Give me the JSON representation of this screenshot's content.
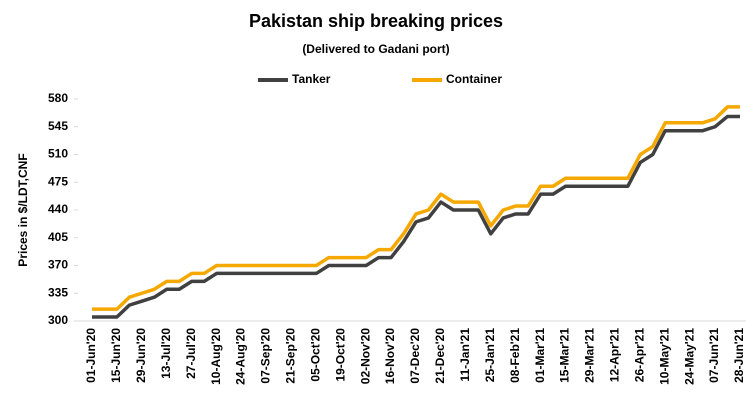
{
  "chart_data": {
    "type": "line",
    "title": "Pakistan ship breaking prices",
    "subtitle": "(Delivered to Gadani port)",
    "ylabel": "Prices in $/LDT,CNF",
    "categories": [
      "01-Jun'20",
      null,
      "15-Jun'20",
      null,
      "29-Jun'20",
      null,
      "13-Jul'20",
      null,
      "27-Jul'20",
      null,
      "10-Aug'20",
      null,
      "24-Aug'20",
      null,
      "07-Sep'20",
      null,
      "21-Sep'20",
      null,
      "05-Oct'20",
      null,
      "19-Oct'20",
      null,
      "02-Nov'20",
      null,
      "16-Nov'20",
      null,
      "07-Dec'20",
      null,
      "21-Dec'20",
      null,
      "11-Jan'21",
      null,
      "25-Jan'21",
      null,
      "08-Feb'21",
      null,
      "01-Mar'21",
      null,
      "15-Mar'21",
      null,
      "29-Mar'21",
      null,
      "12-Apr'21",
      null,
      "26-Apr'21",
      null,
      "10-May'21",
      null,
      "24-May'21",
      null,
      "07-Jun'21",
      null,
      "28-Jun'21"
    ],
    "series": [
      {
        "name": "Tanker",
        "color": "#404040",
        "values": [
          305,
          305,
          305,
          320,
          325,
          330,
          340,
          340,
          350,
          350,
          360,
          360,
          360,
          360,
          360,
          360,
          360,
          360,
          360,
          370,
          370,
          370,
          370,
          380,
          380,
          400,
          425,
          430,
          450,
          440,
          440,
          440,
          410,
          430,
          435,
          435,
          460,
          460,
          470,
          470,
          470,
          470,
          470,
          470,
          500,
          510,
          540,
          540,
          540,
          540,
          545,
          558,
          558
        ]
      },
      {
        "name": "Container",
        "color": "#f5a800",
        "values": [
          315,
          315,
          315,
          330,
          335,
          340,
          350,
          350,
          360,
          360,
          370,
          370,
          370,
          370,
          370,
          370,
          370,
          370,
          370,
          380,
          380,
          380,
          380,
          390,
          390,
          410,
          435,
          440,
          460,
          450,
          450,
          450,
          420,
          440,
          445,
          445,
          470,
          470,
          480,
          480,
          480,
          480,
          480,
          480,
          510,
          520,
          550,
          550,
          550,
          550,
          555,
          570,
          570
        ]
      }
    ],
    "ylim": [
      300,
      580
    ],
    "yticks": [
      300,
      335,
      370,
      405,
      440,
      475,
      510,
      545,
      580
    ],
    "legend": "top"
  }
}
